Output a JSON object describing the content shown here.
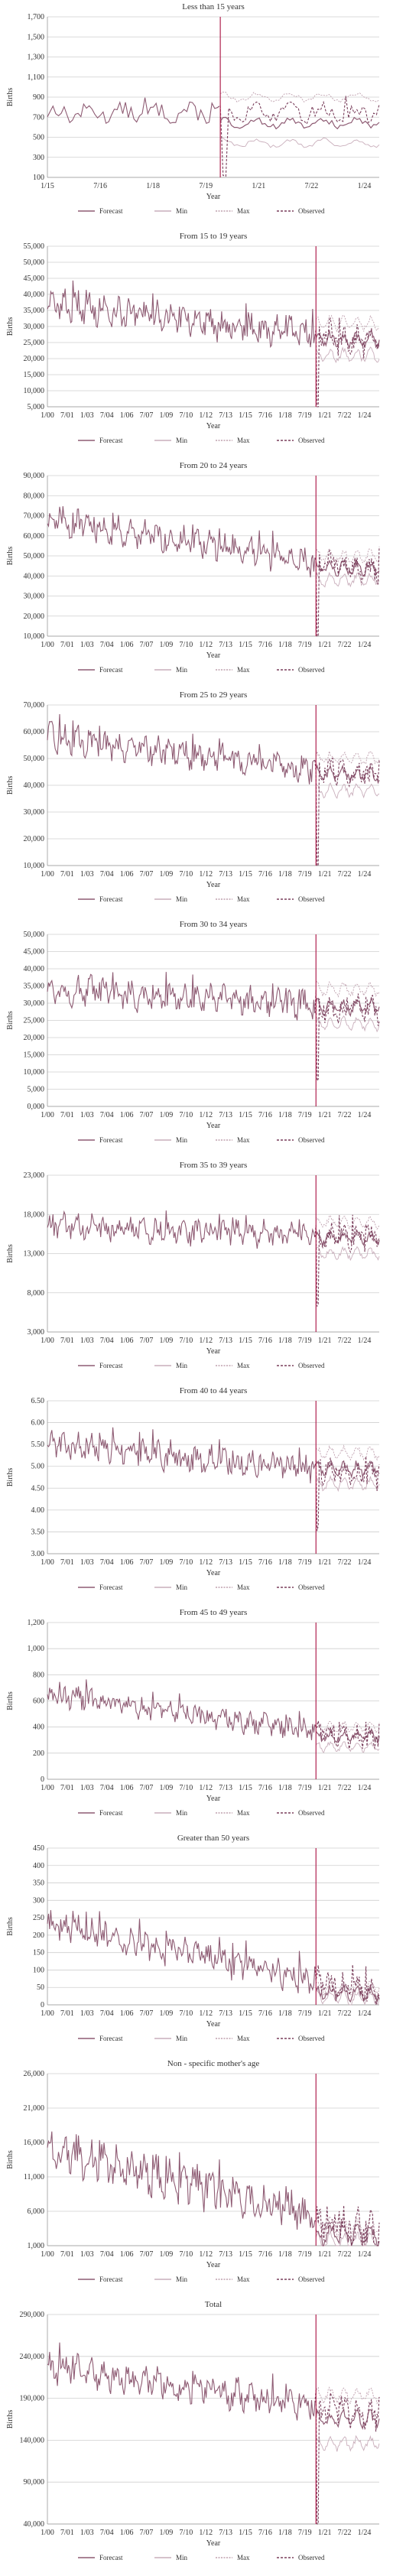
{
  "chart_data": [
    {
      "type": "line",
      "title": "Less than 15 years",
      "xlabel": "Year",
      "ylabel": "Births",
      "x_start": "2015-01",
      "x_end": "2024-12",
      "x_ticks": [
        "1/15",
        "7/16",
        "1/18",
        "7/19",
        "1/21",
        "7/22",
        "1/24"
      ],
      "y_ticks": [
        "100",
        "300",
        "500",
        "700",
        "900",
        "1,100",
        "1,300",
        "1,500",
        "1,700"
      ],
      "ylim": [
        100,
        1700
      ],
      "forecast_start": "2020-03",
      "observed_level": 740,
      "forecast_level": 640,
      "min_level": 440,
      "max_level": 900,
      "noise": 90,
      "trend": -0.5,
      "dip": 0.85,
      "legend": [
        "Forecast",
        "Min",
        "Max",
        "Observed"
      ]
    },
    {
      "type": "line",
      "title": "From 15 to 19 years",
      "xlabel": "Year",
      "ylabel": "Births",
      "x_start": "2000-01",
      "x_end": "2024-12",
      "x_ticks": [
        "1/00",
        "7/01",
        "1/03",
        "7/04",
        "1/06",
        "7/07",
        "1/09",
        "7/10",
        "1/12",
        "7/13",
        "1/15",
        "7/16",
        "1/18",
        "7/19",
        "1/21",
        "7/22",
        "1/24"
      ],
      "y_ticks": [
        "5,000",
        "10,000",
        "15,000",
        "20,000",
        "25,000",
        "30,000",
        "35,000",
        "40,000",
        "45,000",
        "50,000",
        "55,000"
      ],
      "ylim": [
        5000,
        55000
      ],
      "forecast_start": "2020-03",
      "observed_level": 37000,
      "forecast_level": 26000,
      "min_level": 21000,
      "max_level": 31000,
      "noise": 4500,
      "trend": -12000,
      "dip": 0.85,
      "legend": [
        "Forecast",
        "Min",
        "Max",
        "Observed"
      ]
    },
    {
      "type": "line",
      "title": "From 20 to 24 years",
      "xlabel": "Year",
      "ylabel": "Births",
      "x_start": "2000-01",
      "x_end": "2024-12",
      "x_ticks": [
        "1/00",
        "7/01",
        "1/03",
        "7/04",
        "1/06",
        "7/07",
        "1/09",
        "7/10",
        "1/12",
        "7/13",
        "1/15",
        "7/16",
        "1/18",
        "7/19",
        "1/21",
        "7/22",
        "1/24"
      ],
      "y_ticks": [
        "10,000",
        "20,000",
        "30,000",
        "40,000",
        "50,000",
        "60,000",
        "70,000",
        "80,000",
        "90,000"
      ],
      "ylim": [
        10000,
        90000
      ],
      "forecast_start": "2020-03",
      "observed_level": 68000,
      "forecast_level": 44000,
      "min_level": 38000,
      "max_level": 50000,
      "noise": 6500,
      "trend": -26000,
      "dip": 0.8,
      "legend": [
        "Forecast",
        "Min",
        "Max",
        "Observed"
      ]
    },
    {
      "type": "line",
      "title": "From 25 to 29 years",
      "xlabel": "Year",
      "ylabel": "Births",
      "x_start": "2000-01",
      "x_end": "2024-12",
      "x_ticks": [
        "1/00",
        "7/01",
        "1/03",
        "7/04",
        "1/06",
        "7/07",
        "1/09",
        "7/10",
        "1/12",
        "7/13",
        "1/15",
        "7/16",
        "1/18",
        "7/19",
        "1/21",
        "7/22",
        "1/24"
      ],
      "y_ticks": [
        "10,000",
        "20,000",
        "30,000",
        "40,000",
        "50,000",
        "60,000",
        "70,000"
      ],
      "ylim": [
        10000,
        70000
      ],
      "forecast_start": "2020-03",
      "observed_level": 58000,
      "forecast_level": 44000,
      "min_level": 38000,
      "max_level": 50000,
      "noise": 5000,
      "trend": -15000,
      "dip": 0.85,
      "legend": [
        "Forecast",
        "Min",
        "Max",
        "Observed"
      ]
    },
    {
      "type": "line",
      "title": "From 30 to 34 years",
      "xlabel": "Year",
      "ylabel": "Births",
      "x_start": "2000-01",
      "x_end": "2024-12",
      "x_ticks": [
        "1/00",
        "7/01",
        "1/03",
        "7/04",
        "1/06",
        "7/07",
        "1/09",
        "7/10",
        "1/12",
        "7/13",
        "1/15",
        "7/16",
        "1/18",
        "7/19",
        "1/21",
        "7/22",
        "1/24"
      ],
      "y_ticks": [
        "0,000",
        "5,000",
        "10,000",
        "15,000",
        "20,000",
        "25,000",
        "30,000",
        "35,000",
        "40,000",
        "45,000",
        "50,000"
      ],
      "ylim": [
        0,
        50000
      ],
      "forecast_start": "2020-03",
      "observed_level": 34000,
      "forecast_level": 29000,
      "min_level": 24000,
      "max_level": 34000,
      "noise": 4000,
      "trend": -6000,
      "dip": 0.75,
      "legend": [
        "Forecast",
        "Min",
        "Max",
        "Observed"
      ]
    },
    {
      "type": "line",
      "title": "From 35 to 39 years",
      "xlabel": "Year",
      "ylabel": "Births",
      "x_start": "2000-01",
      "x_end": "2024-12",
      "x_ticks": [
        "1/00",
        "7/01",
        "1/03",
        "7/04",
        "1/06",
        "7/07",
        "1/09",
        "7/10",
        "1/12",
        "7/13",
        "1/15",
        "7/16",
        "1/18",
        "7/19",
        "1/21",
        "7/22",
        "1/24"
      ],
      "y_ticks": [
        "3,000",
        "8,000",
        "13,000",
        "18,000",
        "23,000"
      ],
      "ylim": [
        3000,
        23000
      ],
      "forecast_start": "2020-03",
      "observed_level": 16500,
      "forecast_level": 15000,
      "min_level": 13000,
      "max_level": 17000,
      "noise": 1500,
      "trend": -1500,
      "dip": 0.6,
      "legend": [
        "Forecast",
        "Min",
        "Max",
        "Observed"
      ]
    },
    {
      "type": "line",
      "title": "From 40 to 44 years",
      "xlabel": "Year",
      "ylabel": "Births",
      "x_start": "2000-01",
      "x_end": "2024-12",
      "x_ticks": [
        "1/00",
        "7/01",
        "1/03",
        "7/04",
        "1/06",
        "7/07",
        "1/09",
        "7/10",
        "1/12",
        "7/13",
        "1/15",
        "7/16",
        "1/18",
        "7/19",
        "1/21",
        "7/22",
        "1/24"
      ],
      "y_ticks": [
        "3.00",
        "3.50",
        "4.00",
        "4.50",
        "5.00",
        "5.50",
        "6.00",
        "6.50"
      ],
      "ylim": [
        3.0,
        6.5
      ],
      "forecast_start": "2020-03",
      "observed_level": 5.5,
      "forecast_level": 4.95,
      "min_level": 4.6,
      "max_level": 5.3,
      "noise": 0.3,
      "trend": -0.7,
      "dip": 0.3,
      "legend": [
        "Forecast",
        "Min",
        "Max",
        "Observed"
      ]
    },
    {
      "type": "line",
      "title": "From 45 to 49 years",
      "xlabel": "Year",
      "ylabel": "Births",
      "x_start": "2000-01",
      "x_end": "2024-12",
      "x_ticks": [
        "1/00",
        "7/01",
        "1/03",
        "7/04",
        "1/06",
        "7/07",
        "1/09",
        "7/10",
        "1/12",
        "7/13",
        "1/15",
        "7/16",
        "1/18",
        "7/19",
        "1/21",
        "7/22",
        "1/24"
      ],
      "y_ticks": [
        "0",
        "200",
        "400",
        "600",
        "800",
        "1,000",
        "1,200"
      ],
      "ylim": [
        0,
        1200
      ],
      "forecast_start": "2020-03",
      "observed_level": 650,
      "forecast_level": 330,
      "min_level": 250,
      "max_level": 400,
      "noise": 80,
      "trend": -350,
      "dip": 0.0,
      "legend": [
        "Forecast",
        "Min",
        "Max",
        "Observed"
      ]
    },
    {
      "type": "line",
      "title": "Greater than 50 years",
      "xlabel": "Year",
      "ylabel": "Births",
      "x_start": "2000-01",
      "x_end": "2024-12",
      "x_ticks": [
        "1/00",
        "7/01",
        "1/03",
        "7/04",
        "1/06",
        "7/07",
        "1/09",
        "7/10",
        "1/12",
        "7/13",
        "1/15",
        "7/16",
        "1/18",
        "7/19",
        "1/21",
        "7/22",
        "1/24"
      ],
      "y_ticks": [
        "0",
        "50",
        "100",
        "150",
        "200",
        "250",
        "300",
        "350",
        "400",
        "450"
      ],
      "ylim": [
        0,
        450
      ],
      "forecast_start": "2020-03",
      "observed_level": 230,
      "forecast_level": 35,
      "min_level": 20,
      "max_level": 50,
      "noise": 40,
      "trend": -200,
      "dip": 0.0,
      "legend": [
        "Forecast",
        "Min",
        "Max",
        "Observed"
      ]
    },
    {
      "type": "line",
      "title": "Non - specific mother's age",
      "xlabel": "Year",
      "ylabel": "Births",
      "x_start": "2000-01",
      "x_end": "2024-12",
      "x_ticks": [
        "1/00",
        "7/01",
        "1/03",
        "7/04",
        "1/06",
        "7/07",
        "1/09",
        "7/10",
        "1/12",
        "7/13",
        "1/15",
        "7/16",
        "1/18",
        "7/19",
        "1/21",
        "7/22",
        "1/24"
      ],
      "y_ticks": [
        "1,000",
        "6,000",
        "11,000",
        "16,000",
        "21,000",
        "26,000"
      ],
      "ylim": [
        1000,
        28000
      ],
      "forecast_start": "2020-03",
      "observed_level": 16000,
      "forecast_level": 2800,
      "min_level": 1600,
      "max_level": 4000,
      "noise": 3000,
      "trend": -13000,
      "dip": 0.0,
      "legend": [
        "Forecast",
        "Min",
        "Max",
        "Observed"
      ]
    },
    {
      "type": "line",
      "title": "Total",
      "xlabel": "Year",
      "ylabel": "Births",
      "x_start": "2000-01",
      "x_end": "2024-12",
      "x_ticks": [
        "1/00",
        "7/01",
        "1/03",
        "7/04",
        "1/06",
        "7/07",
        "1/09",
        "7/10",
        "1/12",
        "7/13",
        "1/15",
        "7/16",
        "1/18",
        "7/19",
        "1/21",
        "7/22",
        "1/24"
      ],
      "y_ticks": [
        "40,000",
        "90,000",
        "140,000",
        "190,000",
        "240,000",
        "290,000"
      ],
      "ylim": [
        40000,
        300000
      ],
      "forecast_start": "2020-03",
      "observed_level": 235000,
      "forecast_level": 170000,
      "min_level": 140000,
      "max_level": 200000,
      "noise": 18000,
      "trend": -60000,
      "dip": 0.85,
      "legend": [
        "Forecast",
        "Min",
        "Max",
        "Observed"
      ]
    }
  ],
  "colors": {
    "forecast": "#8e5b73",
    "min": "#c9aebb",
    "max": "#bfa0ae",
    "observed": "#7a3f5c",
    "marker": "#b0224f",
    "grid": "#cfcfcf"
  }
}
